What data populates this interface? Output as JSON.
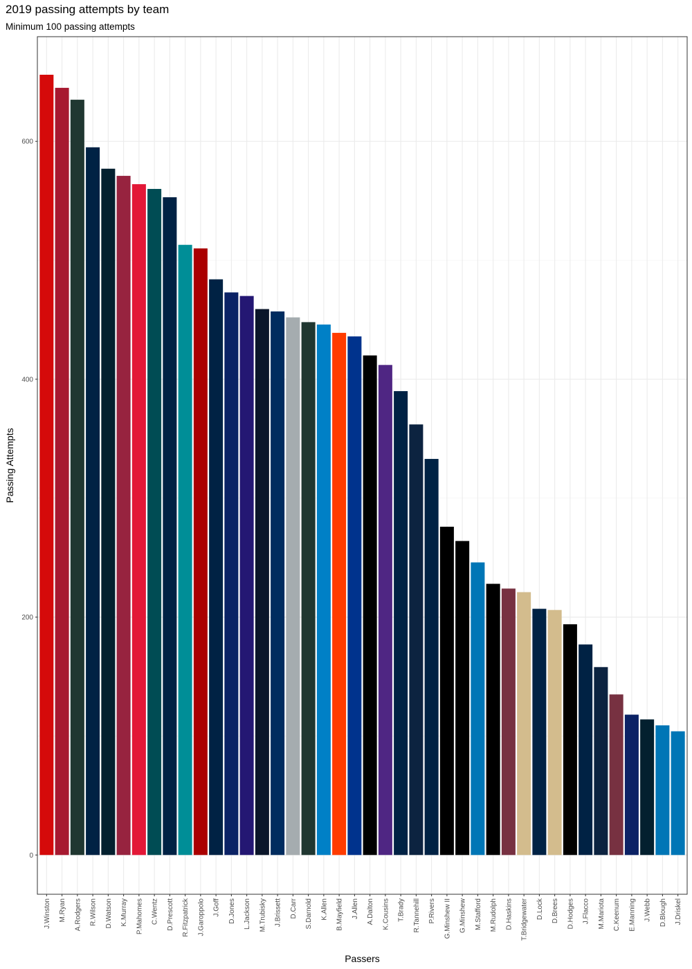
{
  "chart_data": {
    "type": "bar",
    "title": "2019 passing attempts by team",
    "subtitle": "Minimum 100 passing attempts",
    "xlabel": "Passers",
    "ylabel": "Passing Attempts",
    "ylim": [
      -33,
      688
    ],
    "yticks": [
      0,
      200,
      400,
      600
    ],
    "grid": true,
    "categories": [
      "J.Winston",
      "M.Ryan",
      "A.Rodgers",
      "R.Wilson",
      "D.Watson",
      "K.Murray",
      "P.Mahomes",
      "C.Wentz",
      "D.Prescott",
      "R.Fitzpatrick",
      "J.Garoppolo",
      "J.Goff",
      "D.Jones",
      "L.Jackson",
      "M.Trubisky",
      "J.Brissett",
      "D.Carr",
      "S.Darnold",
      "K.Allen",
      "B.Mayfield",
      "J.Allen",
      "A.Dalton",
      "K.Cousins",
      "T.Brady",
      "R.Tannehill",
      "P.Rivers",
      "G.Minshew II",
      "G.Minshew",
      "M.Stafford",
      "M.Rudolph",
      "D.Haskins",
      "T.Bridgewater",
      "D.Lock",
      "D.Brees",
      "D.Hodges",
      "J.Flacco",
      "M.Mariota",
      "C.Keenum",
      "E.Manning",
      "J.Webb",
      "D.Blough",
      "J.Driskel"
    ],
    "values": [
      656,
      645,
      635,
      595,
      577,
      571,
      564,
      560,
      553,
      513,
      510,
      484,
      473,
      470,
      459,
      457,
      452,
      448,
      446,
      439,
      436,
      420,
      412,
      390,
      362,
      333,
      276,
      264,
      246,
      228,
      224,
      221,
      207,
      206,
      194,
      177,
      158,
      135,
      118,
      114,
      109,
      104
    ],
    "colors": [
      "#D50A0A",
      "#A71930",
      "#203731",
      "#002244",
      "#03202F",
      "#97233F",
      "#E31837",
      "#004C54",
      "#002244",
      "#008E97",
      "#AA0000",
      "#002244",
      "#0B2265",
      "#241773",
      "#0B162A",
      "#002C5F",
      "#A5ACAF",
      "#203731",
      "#0080C6",
      "#FF3C00",
      "#00338D",
      "#000000",
      "#4F2683",
      "#002244",
      "#0C2340",
      "#002244",
      "#000000",
      "#000000",
      "#0076B6",
      "#000000",
      "#773141",
      "#D3BC8D",
      "#002244",
      "#D3BC8D",
      "#000000",
      "#002244",
      "#0C2340",
      "#773141",
      "#0B2265",
      "#03202F",
      "#0076B6",
      "#0076B6"
    ]
  }
}
